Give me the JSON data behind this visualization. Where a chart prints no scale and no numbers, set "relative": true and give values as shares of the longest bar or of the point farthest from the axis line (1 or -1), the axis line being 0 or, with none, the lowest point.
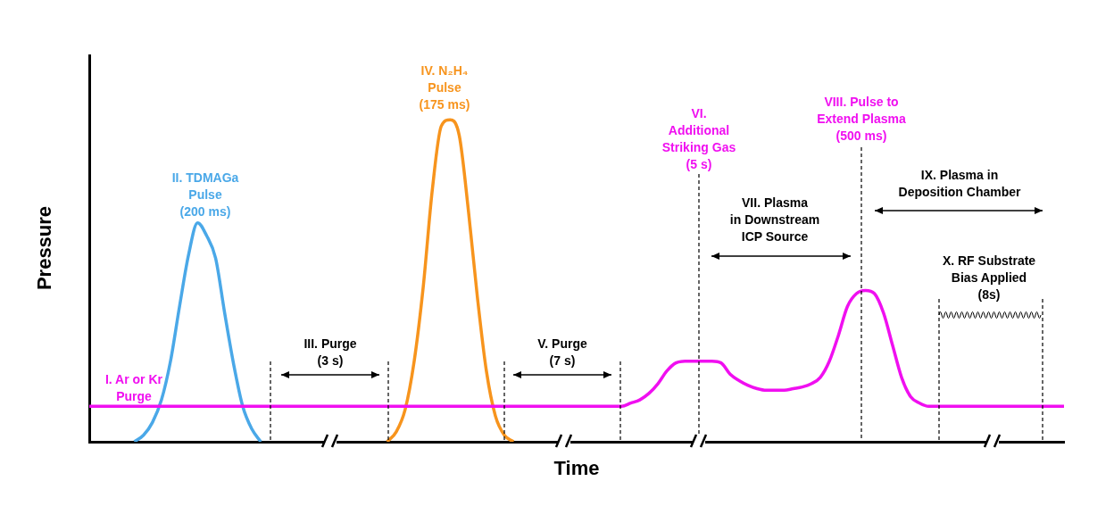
{
  "chart_data": {
    "type": "line",
    "relative": true,
    "xlabel": "Time",
    "ylabel": "Pressure",
    "categories": [
      null,
      null,
      null,
      null,
      null,
      null,
      null,
      null,
      null,
      null,
      null,
      null,
      null,
      null,
      null,
      null,
      null,
      null,
      null,
      null,
      null,
      null,
      null,
      null,
      null,
      null,
      null,
      null,
      null,
      null,
      null,
      null,
      null,
      null,
      null,
      null,
      null,
      null,
      null,
      null,
      null,
      null,
      null,
      null,
      null,
      null,
      null,
      null,
      null,
      null,
      null,
      null,
      null,
      null,
      null,
      null,
      null,
      null,
      null,
      null,
      null,
      null,
      null,
      null,
      null,
      null,
      null,
      null,
      null,
      null,
      null,
      null,
      null,
      null,
      null,
      null,
      null,
      null,
      null,
      null,
      null,
      null,
      null,
      null,
      null,
      null,
      null,
      null,
      null,
      null,
      null,
      null,
      null,
      null,
      null,
      null,
      null,
      null,
      null,
      null,
      null,
      null,
      null,
      null,
      null,
      null,
      null,
      null,
      null
    ],
    "series": [
      {
        "color": "#f00ff0",
        "values": [
          0.11,
          0.11,
          0.11,
          0.11,
          0.11,
          0.11,
          0.11,
          0.11,
          0.11,
          0.11,
          0.11,
          0.11,
          0.11,
          0.11,
          0.11,
          0.11,
          0.11,
          0.11,
          0.11,
          0.11,
          0.11,
          0.11,
          0.11,
          0.11,
          0.11,
          0.11,
          0.11,
          0.11,
          0.11,
          0.11,
          0.11,
          0.11,
          0.11,
          0.11,
          0.11,
          0.11,
          0.11,
          0.11,
          0.11,
          0.11,
          0.11,
          0.11,
          0.11,
          0.11,
          0.11,
          0.11,
          0.11,
          0.11,
          0.11,
          0.11,
          0.11,
          0.11,
          0.11,
          0.11,
          0.11,
          0.11,
          0.11,
          0.11,
          0.11,
          0.11,
          0.12,
          0.13,
          0.15,
          0.18,
          0.22,
          0.245,
          0.25,
          0.25,
          0.25,
          0.25,
          0.245,
          0.21,
          0.19,
          0.175,
          0.165,
          0.16,
          0.16,
          0.16,
          0.165,
          0.17,
          0.18,
          0.2,
          0.25,
          0.33,
          0.42,
          0.46,
          0.47,
          0.46,
          0.4,
          0.3,
          0.2,
          0.14,
          0.12,
          0.11,
          0.11,
          0.11,
          0.11,
          0.11,
          0.11,
          0.11,
          0.11,
          0.11,
          0.11,
          0.11,
          0.11,
          0.11,
          0.11,
          0.11,
          0.11
        ]
      },
      {
        "color": "#4aa8e8",
        "values": [
          null,
          null,
          null,
          null,
          null,
          0,
          0.02,
          0.06,
          0.13,
          0.25,
          0.42,
          0.58,
          0.68,
          0.64,
          0.57,
          0.4,
          0.24,
          0.11,
          0.04,
          0,
          null,
          null,
          null,
          null,
          null,
          null,
          null,
          null,
          null,
          null,
          null,
          null,
          null,
          null,
          null,
          null,
          null,
          null,
          null,
          null,
          null,
          null,
          null,
          null,
          null,
          null,
          null,
          null,
          null,
          null,
          null,
          null,
          null,
          null,
          null,
          null,
          null,
          null,
          null,
          null,
          null,
          null,
          null,
          null,
          null,
          null,
          null,
          null,
          null,
          null,
          null,
          null,
          null,
          null,
          null,
          null,
          null,
          null,
          null,
          null,
          null,
          null,
          null,
          null,
          null,
          null,
          null,
          null,
          null,
          null,
          null,
          null,
          null,
          null,
          null,
          null,
          null,
          null,
          null,
          null,
          null,
          null,
          null,
          null,
          null,
          null,
          null,
          null,
          null
        ]
      },
      {
        "color": "#f7941d",
        "values": [
          null,
          null,
          null,
          null,
          null,
          null,
          null,
          null,
          null,
          null,
          null,
          null,
          null,
          null,
          null,
          null,
          null,
          null,
          null,
          null,
          null,
          null,
          null,
          null,
          null,
          null,
          null,
          null,
          null,
          null,
          null,
          null,
          null,
          0,
          0.03,
          0.1,
          0.25,
          0.48,
          0.78,
          0.98,
          1,
          0.95,
          0.72,
          0.45,
          0.22,
          0.08,
          0.02,
          0,
          null,
          null,
          null,
          null,
          null,
          null,
          null,
          null,
          null,
          null,
          null,
          null,
          null,
          null,
          null,
          null,
          null,
          null,
          null,
          null,
          null,
          null,
          null,
          null,
          null,
          null,
          null,
          null,
          null,
          null,
          null,
          null,
          null,
          null,
          null,
          null,
          null,
          null,
          null,
          null,
          null,
          null,
          null,
          null,
          null,
          null,
          null,
          null,
          null,
          null,
          null,
          null,
          null,
          null,
          null,
          null,
          null,
          null,
          null,
          null,
          null
        ]
      }
    ],
    "annotations": [
      "I. Ar or Kr Purge",
      "II. TDMAGa Pulse (200 ms)",
      "III. Purge (3 s)",
      "IV. N₂H₄ Pulse (175 ms)",
      "V. Purge (7 s)",
      "VI. Additional Striking Gas (5 s)",
      "VII. Plasma in Downstream ICP Source",
      "VIII. Pulse to Extend Plasma (500 ms)",
      "IX. Plasma in Deposition Chamber",
      "X. RF Substrate Bias Applied (8s)"
    ]
  }
}
